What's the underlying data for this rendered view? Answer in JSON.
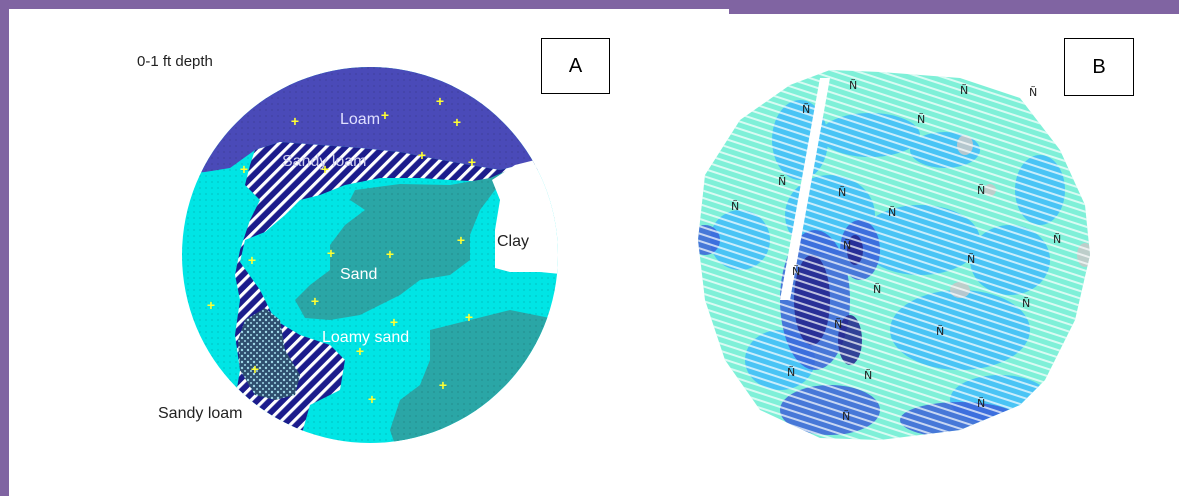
{
  "map_a": {
    "depth_label": "0-1 ft depth",
    "panel_label": "A",
    "region_labels": {
      "loam": "Loam",
      "sandy_loam_top": "Sandy loam",
      "clay": "Clay",
      "sand": "Sand",
      "loamy_sand": "Loamy sand",
      "sandy_loam_bottom": "Sandy loam"
    },
    "colors": {
      "loam": "#4a4ab8",
      "sandy_loam": "#1c1c8c",
      "sand": "#00e5e5",
      "loamy_sand": "#2aa6a6",
      "gravelly": "#2f4f6f",
      "sample_marker": "#ffff33"
    }
  },
  "map_b": {
    "panel_label": "B",
    "sample_glyph": "Ñ",
    "colors": {
      "base": "#7ff0d8",
      "light_blue": "#38b6ff",
      "mid_blue": "#3a5ad8",
      "dark_blue": "#24248c",
      "gray": "#c8c8c8"
    }
  }
}
